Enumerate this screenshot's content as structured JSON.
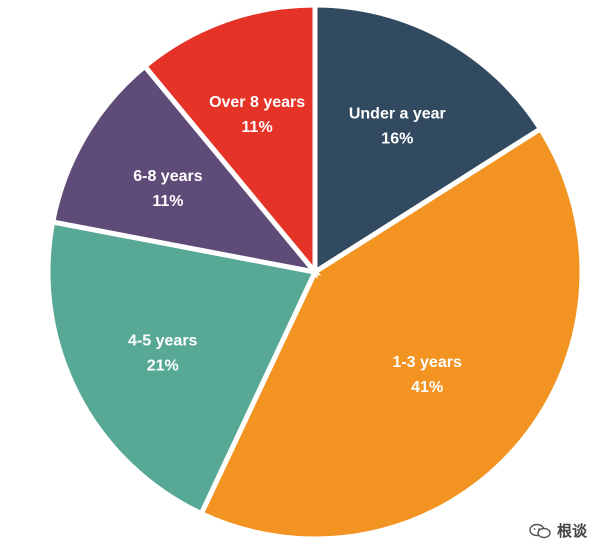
{
  "chart_data": {
    "type": "pie",
    "title": "",
    "legend": "none",
    "slices": [
      {
        "label": "Under a year",
        "value": 16,
        "value_label": "16%",
        "color": "#324a5f"
      },
      {
        "label": "1-3 years",
        "value": 41,
        "value_label": "41%",
        "color": "#f39321"
      },
      {
        "label": "4-5 years",
        "value": 21,
        "value_label": "21%",
        "color": "#57a894"
      },
      {
        "label": "6-8 years",
        "value": 11,
        "value_label": "11%",
        "color": "#5f4b78"
      },
      {
        "label": "Over 8 years",
        "value": 11,
        "value_label": "11%",
        "color": "#e63327"
      }
    ]
  },
  "watermark": {
    "text": "根谈",
    "icon": "wechat-icon"
  }
}
